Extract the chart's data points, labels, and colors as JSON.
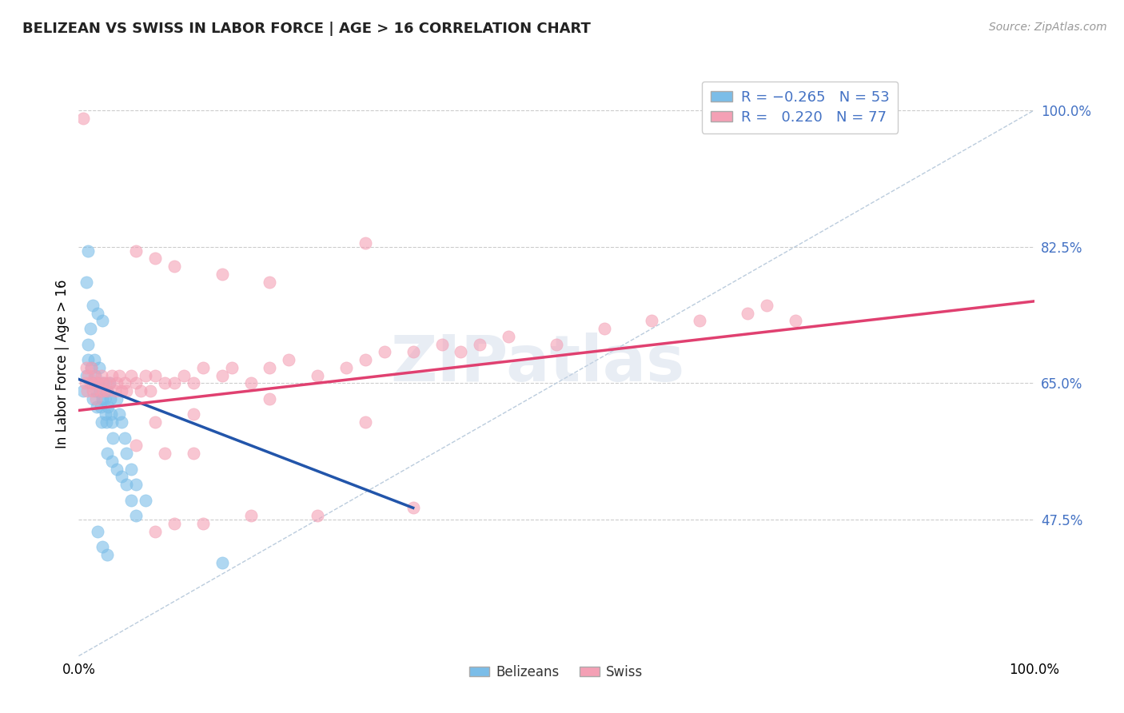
{
  "title": "BELIZEAN VS SWISS IN LABOR FORCE | AGE > 16 CORRELATION CHART",
  "source_text": "Source: ZipAtlas.com",
  "ylabel": "In Labor Force | Age > 16",
  "xlim": [
    0.0,
    1.0
  ],
  "ylim": [
    0.3,
    1.05
  ],
  "xticklabels": [
    "0.0%",
    "100.0%"
  ],
  "ytick_positions": [
    0.475,
    0.65,
    0.825,
    1.0
  ],
  "ytick_labels": [
    "47.5%",
    "65.0%",
    "82.5%",
    "100.0%"
  ],
  "belizean_color": "#7bbde8",
  "swiss_color": "#f4a0b5",
  "belizean_line_color": "#2255aa",
  "swiss_line_color": "#e04070",
  "diag_color": "#bbccdd",
  "watermark": "ZIPatlas",
  "background_color": "#ffffff",
  "grid_color": "#cccccc",
  "belizean_trend_x": [
    0.0,
    0.35
  ],
  "belizean_trend_y": [
    0.655,
    0.49
  ],
  "swiss_trend_x": [
    0.0,
    1.0
  ],
  "swiss_trend_y": [
    0.615,
    0.755
  ],
  "belizean_scatter_x": [
    0.005,
    0.008,
    0.01,
    0.01,
    0.012,
    0.013,
    0.014,
    0.015,
    0.016,
    0.017,
    0.018,
    0.019,
    0.02,
    0.021,
    0.022,
    0.023,
    0.024,
    0.025,
    0.026,
    0.027,
    0.028,
    0.029,
    0.03,
    0.031,
    0.032,
    0.033,
    0.034,
    0.035,
    0.036,
    0.04,
    0.042,
    0.045,
    0.048,
    0.05,
    0.055,
    0.06,
    0.07,
    0.008,
    0.01,
    0.015,
    0.02,
    0.025,
    0.03,
    0.035,
    0.04,
    0.045,
    0.05,
    0.055,
    0.06,
    0.02,
    0.025,
    0.03,
    0.15
  ],
  "belizean_scatter_y": [
    0.64,
    0.66,
    0.68,
    0.7,
    0.72,
    0.67,
    0.65,
    0.63,
    0.68,
    0.66,
    0.64,
    0.62,
    0.65,
    0.67,
    0.64,
    0.62,
    0.6,
    0.63,
    0.65,
    0.63,
    0.61,
    0.6,
    0.64,
    0.62,
    0.65,
    0.63,
    0.61,
    0.6,
    0.58,
    0.63,
    0.61,
    0.6,
    0.58,
    0.56,
    0.54,
    0.52,
    0.5,
    0.78,
    0.82,
    0.75,
    0.74,
    0.73,
    0.56,
    0.55,
    0.54,
    0.53,
    0.52,
    0.5,
    0.48,
    0.46,
    0.44,
    0.43,
    0.42
  ],
  "swiss_scatter_x": [
    0.005,
    0.007,
    0.008,
    0.009,
    0.01,
    0.012,
    0.013,
    0.015,
    0.016,
    0.017,
    0.018,
    0.02,
    0.022,
    0.024,
    0.025,
    0.026,
    0.028,
    0.03,
    0.032,
    0.035,
    0.038,
    0.04,
    0.042,
    0.045,
    0.048,
    0.05,
    0.055,
    0.06,
    0.065,
    0.07,
    0.075,
    0.08,
    0.09,
    0.1,
    0.11,
    0.12,
    0.13,
    0.15,
    0.16,
    0.18,
    0.2,
    0.22,
    0.25,
    0.28,
    0.3,
    0.32,
    0.35,
    0.38,
    0.4,
    0.42,
    0.45,
    0.5,
    0.55,
    0.6,
    0.65,
    0.7,
    0.72,
    0.75,
    0.06,
    0.08,
    0.1,
    0.15,
    0.2,
    0.3,
    0.06,
    0.09,
    0.12,
    0.08,
    0.1,
    0.13,
    0.18,
    0.25,
    0.35,
    0.08,
    0.12,
    0.2,
    0.3
  ],
  "swiss_scatter_y": [
    0.99,
    0.65,
    0.67,
    0.64,
    0.66,
    0.65,
    0.67,
    0.64,
    0.66,
    0.65,
    0.63,
    0.65,
    0.64,
    0.66,
    0.65,
    0.64,
    0.65,
    0.64,
    0.65,
    0.66,
    0.64,
    0.65,
    0.66,
    0.64,
    0.65,
    0.64,
    0.66,
    0.65,
    0.64,
    0.66,
    0.64,
    0.66,
    0.65,
    0.65,
    0.66,
    0.65,
    0.67,
    0.66,
    0.67,
    0.65,
    0.67,
    0.68,
    0.66,
    0.67,
    0.68,
    0.69,
    0.69,
    0.7,
    0.69,
    0.7,
    0.71,
    0.7,
    0.72,
    0.73,
    0.73,
    0.74,
    0.75,
    0.73,
    0.82,
    0.81,
    0.8,
    0.79,
    0.78,
    0.83,
    0.57,
    0.56,
    0.56,
    0.46,
    0.47,
    0.47,
    0.48,
    0.48,
    0.49,
    0.6,
    0.61,
    0.63,
    0.6
  ]
}
